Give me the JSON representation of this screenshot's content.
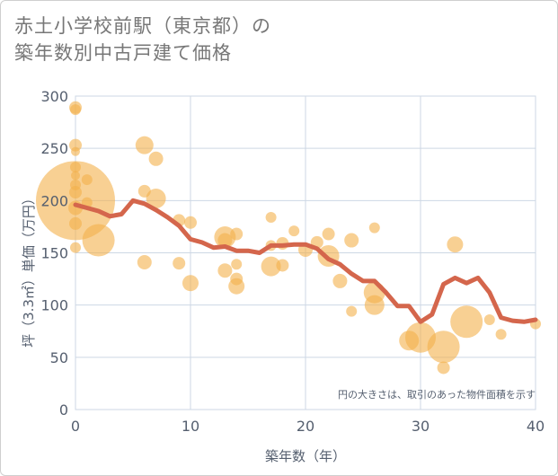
{
  "title_line1": "赤土小学校前駅（東京都）の",
  "title_line2": "築年数別中古戸建て価格",
  "chart_data": {
    "type": "scatter",
    "xlabel": "築年数（年）",
    "ylabel": "坪（3.3㎡）単価（万円）",
    "xlim": [
      0,
      40
    ],
    "ylim": [
      0,
      300
    ],
    "xticks": [
      0,
      10,
      20,
      30,
      40
    ],
    "yticks": [
      0,
      50,
      100,
      150,
      200,
      250,
      300
    ],
    "grid": true,
    "annotation": "円の大きさは、取引のあった物件面積を示す",
    "colors": {
      "bubble": "#f3b04b",
      "line": "#d4664c",
      "axis_text": "#555f6f",
      "grid": "#cdd7e4"
    },
    "bubbles": [
      {
        "x": 0,
        "y": 289,
        "r": 7
      },
      {
        "x": 0,
        "y": 287,
        "r": 6
      },
      {
        "x": 0,
        "y": 253,
        "r": 7
      },
      {
        "x": 0,
        "y": 247,
        "r": 5
      },
      {
        "x": 0,
        "y": 232,
        "r": 6
      },
      {
        "x": 0,
        "y": 224,
        "r": 5
      },
      {
        "x": 0,
        "y": 215,
        "r": 6
      },
      {
        "x": 0,
        "y": 208,
        "r": 7
      },
      {
        "x": 0,
        "y": 200,
        "r": 44
      },
      {
        "x": 0,
        "y": 193,
        "r": 8
      },
      {
        "x": 0,
        "y": 178,
        "r": 7
      },
      {
        "x": 0,
        "y": 155,
        "r": 6
      },
      {
        "x": 1,
        "y": 220,
        "r": 6
      },
      {
        "x": 1,
        "y": 198,
        "r": 6
      },
      {
        "x": 2,
        "y": 162,
        "r": 18
      },
      {
        "x": 6,
        "y": 253,
        "r": 10
      },
      {
        "x": 6,
        "y": 209,
        "r": 7
      },
      {
        "x": 6,
        "y": 141,
        "r": 8
      },
      {
        "x": 7,
        "y": 240,
        "r": 8
      },
      {
        "x": 7,
        "y": 202,
        "r": 11
      },
      {
        "x": 9,
        "y": 181,
        "r": 7
      },
      {
        "x": 9,
        "y": 140,
        "r": 7
      },
      {
        "x": 10,
        "y": 179,
        "r": 7
      },
      {
        "x": 10,
        "y": 121,
        "r": 9
      },
      {
        "x": 13,
        "y": 165,
        "r": 12
      },
      {
        "x": 13,
        "y": 162,
        "r": 8
      },
      {
        "x": 13,
        "y": 133,
        "r": 8
      },
      {
        "x": 14,
        "y": 168,
        "r": 7
      },
      {
        "x": 14,
        "y": 139,
        "r": 6
      },
      {
        "x": 14,
        "y": 125,
        "r": 7
      },
      {
        "x": 14,
        "y": 118,
        "r": 9
      },
      {
        "x": 17,
        "y": 184,
        "r": 6
      },
      {
        "x": 17,
        "y": 157,
        "r": 6
      },
      {
        "x": 17,
        "y": 137,
        "r": 11
      },
      {
        "x": 18,
        "y": 159,
        "r": 7
      },
      {
        "x": 18,
        "y": 138,
        "r": 7
      },
      {
        "x": 19,
        "y": 171,
        "r": 6
      },
      {
        "x": 20,
        "y": 153,
        "r": 8
      },
      {
        "x": 21,
        "y": 160,
        "r": 7
      },
      {
        "x": 22,
        "y": 168,
        "r": 7
      },
      {
        "x": 22,
        "y": 147,
        "r": 12
      },
      {
        "x": 23,
        "y": 123,
        "r": 8
      },
      {
        "x": 24,
        "y": 162,
        "r": 8
      },
      {
        "x": 24,
        "y": 94,
        "r": 6
      },
      {
        "x": 26,
        "y": 174,
        "r": 6
      },
      {
        "x": 26,
        "y": 112,
        "r": 12
      },
      {
        "x": 26,
        "y": 100,
        "r": 11
      },
      {
        "x": 29,
        "y": 66,
        "r": 11
      },
      {
        "x": 30,
        "y": 69,
        "r": 17
      },
      {
        "x": 32,
        "y": 60,
        "r": 18
      },
      {
        "x": 32,
        "y": 40,
        "r": 7
      },
      {
        "x": 33,
        "y": 158,
        "r": 9
      },
      {
        "x": 34,
        "y": 84,
        "r": 18
      },
      {
        "x": 36,
        "y": 86,
        "r": 6
      },
      {
        "x": 37,
        "y": 72,
        "r": 6
      },
      {
        "x": 40,
        "y": 82,
        "r": 6
      }
    ],
    "line": {
      "x": [
        0,
        1,
        2,
        3,
        4,
        5,
        6,
        7,
        8,
        9,
        10,
        11,
        12,
        13,
        14,
        15,
        16,
        17,
        18,
        19,
        20,
        21,
        22,
        23,
        24,
        25,
        26,
        27,
        28,
        29,
        30,
        31,
        32,
        33,
        34,
        35,
        36,
        37,
        38,
        39,
        40
      ],
      "y": [
        196,
        193,
        190,
        185,
        187,
        200,
        197,
        191,
        184,
        176,
        163,
        160,
        155,
        156,
        152,
        152,
        150,
        157,
        157,
        158,
        158,
        154,
        144,
        139,
        130,
        123,
        123,
        112,
        99,
        99,
        84,
        91,
        120,
        126,
        121,
        126,
        112,
        88,
        85,
        84,
        86
      ]
    }
  }
}
